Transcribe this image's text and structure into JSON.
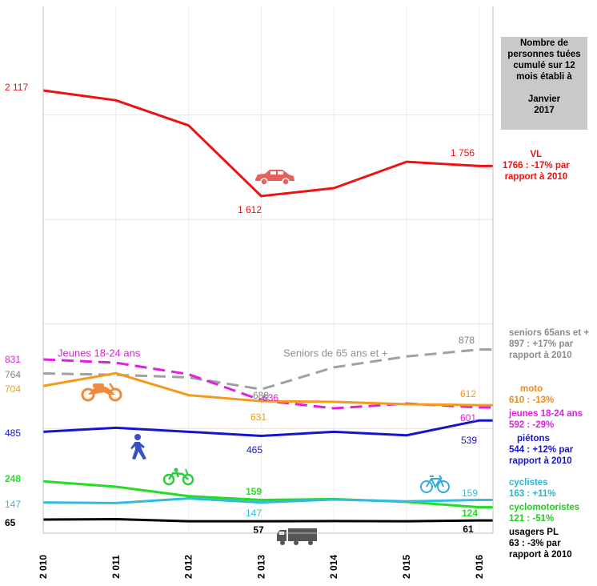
{
  "chart_data": {
    "type": "line",
    "x": [
      "2 010",
      "2 011",
      "2 012",
      "2 013",
      "2 014",
      "2 015",
      "2 016"
    ],
    "ylim": [
      0,
      2300
    ],
    "grid": true,
    "series": [
      {
        "key": "vl",
        "color": "#ee1111",
        "dashed": false,
        "values": [
          2117,
          2070,
          1950,
          1612,
          1650,
          1776,
          1756
        ]
      },
      {
        "key": "seniors",
        "color": "#a0a0a0",
        "dashed": true,
        "values": [
          764,
          757,
          745,
          688,
          793,
          845,
          878
        ]
      },
      {
        "key": "jeunes",
        "color": "#e020e0",
        "dashed": true,
        "values": [
          831,
          815,
          760,
          636,
          597,
          620,
          601
        ]
      },
      {
        "key": "moto",
        "color": "#f39a1a",
        "dashed": false,
        "values": [
          704,
          765,
          660,
          631,
          628,
          617,
          612
        ]
      },
      {
        "key": "pietons",
        "color": "#1515cc",
        "dashed": false,
        "values": [
          485,
          504,
          485,
          465,
          485,
          468,
          539
        ]
      },
      {
        "key": "cyclomotoristes",
        "color": "#22dd22",
        "dashed": false,
        "values": [
          248,
          222,
          177,
          159,
          163,
          150,
          124
        ]
      },
      {
        "key": "cyclistes",
        "color": "#33bbdd",
        "dashed": false,
        "values": [
          147,
          144,
          166,
          147,
          161,
          152,
          159
        ]
      },
      {
        "key": "usagers_pl",
        "color": "#000000",
        "dashed": false,
        "values": [
          65,
          67,
          57,
          57,
          58,
          57,
          61
        ]
      }
    ],
    "data_labels": [
      {
        "text": "2 117",
        "color": "#ee1111"
      },
      {
        "text": "1 612",
        "color": "#ee1111"
      },
      {
        "text": "1 756",
        "color": "#ee1111"
      },
      {
        "text": "831",
        "color": "#e020e0"
      },
      {
        "text": "764",
        "color": "#808080"
      },
      {
        "text": "704",
        "color": "#f39a1a"
      },
      {
        "text": "688",
        "color": "#808080"
      },
      {
        "text": "636",
        "color": "#e020e0"
      },
      {
        "text": "631",
        "color": "#f39a1a"
      },
      {
        "text": "878",
        "color": "#808080"
      },
      {
        "text": "612",
        "color": "#f39a1a"
      },
      {
        "text": "601",
        "color": "#e020e0"
      },
      {
        "text": "485",
        "color": "#1515cc"
      },
      {
        "text": "465",
        "color": "#1515cc"
      },
      {
        "text": "539",
        "color": "#1515cc"
      },
      {
        "text": "248",
        "color": "#22dd22"
      },
      {
        "text": "159",
        "color": "#22dd22"
      },
      {
        "text": "124",
        "color": "#22dd22"
      },
      {
        "text": "147",
        "color": "#33bbdd"
      },
      {
        "text": "147",
        "color": "#33bbdd"
      },
      {
        "text": "159",
        "color": "#33bbdd"
      },
      {
        "text": "65",
        "color": "#000000"
      },
      {
        "text": "57",
        "color": "#000000"
      },
      {
        "text": "61",
        "color": "#000000"
      }
    ],
    "annotations": [
      {
        "text": "Jeunes 18-24 ans",
        "color": "#e020e0"
      },
      {
        "text": "Seniors de 65 ans et +",
        "color": "#909090"
      }
    ],
    "icons": [
      {
        "name": "car-icon",
        "color": "#e8605a"
      },
      {
        "name": "motorcycle-icon",
        "color": "#f08a3a"
      },
      {
        "name": "pedestrian-icon",
        "color": "#3b4fc4"
      },
      {
        "name": "moped-icon",
        "color": "#2ecc40"
      },
      {
        "name": "bicycle-icon",
        "color": "#33aadd"
      },
      {
        "name": "truck-icon",
        "color": "#555555"
      }
    ]
  },
  "info_box": {
    "lines": [
      "Nombre de",
      "personnes tuées",
      "cumulé sur 12",
      "mois établi à",
      "",
      "Janvier",
      "2017"
    ]
  },
  "legend": {
    "vl": {
      "color": "#ee1111",
      "lines": [
        "VL",
        "1766 : -17% par",
        "rapport à 2010"
      ]
    },
    "seniors": {
      "color": "#8c8c8c",
      "lines": [
        "seniors 65ans et +",
        "897 : +17% par",
        "rapport à 2010"
      ]
    },
    "moto": {
      "color": "#f08a1a",
      "lines": [
        "moto",
        "610 : -13%"
      ]
    },
    "jeunes": {
      "color": "#e020e0",
      "lines": [
        "jeunes 18-24 ans",
        "592 : -29%"
      ]
    },
    "pietons": {
      "color": "#1515cc",
      "lines": [
        "piétons",
        "544 : +12% par",
        "rapport à 2010"
      ]
    },
    "cyclistes": {
      "color": "#22b8d0",
      "lines": [
        "cyclistes",
        "163 : +11%"
      ]
    },
    "cyclomotoristes": {
      "color": "#22cc22",
      "lines": [
        "cyclomotoristes",
        "121 : -51%"
      ]
    },
    "usagers_pl": {
      "color": "#000000",
      "lines": [
        "usagers PL",
        "63 : -3% par",
        "rapport à 2010"
      ]
    }
  }
}
